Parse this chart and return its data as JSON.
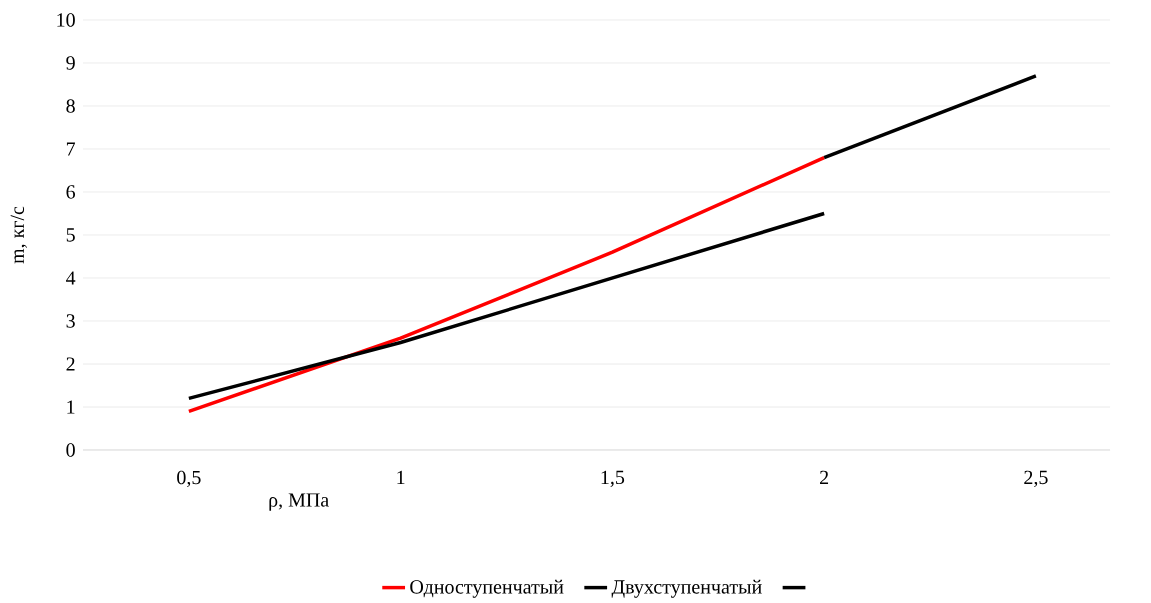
{
  "chart_data": {
    "type": "line",
    "xlabel": "ρ, МПа",
    "ylabel": "m, кг/с",
    "categories": [
      "0,5",
      "1",
      "1,5",
      "2",
      "2,5"
    ],
    "series": [
      {
        "name": "Одноступенчатый",
        "color": "#ff0000",
        "values": [
          0.9,
          2.6,
          4.6,
          6.8,
          null
        ]
      },
      {
        "name": "Двухступенчатый",
        "color": "#000000",
        "values": [
          1.2,
          2.5,
          4.0,
          5.5,
          null
        ]
      },
      {
        "color": "#000000",
        "values": [
          null,
          null,
          null,
          6.8,
          8.7
        ]
      }
    ],
    "ylim": [
      0,
      10
    ],
    "yticks": [
      0,
      1,
      2,
      3,
      4,
      5,
      6,
      7,
      8,
      9,
      10
    ],
    "grid": "y",
    "legend": "bottom",
    "marker": "none",
    "line_style": "solid"
  }
}
